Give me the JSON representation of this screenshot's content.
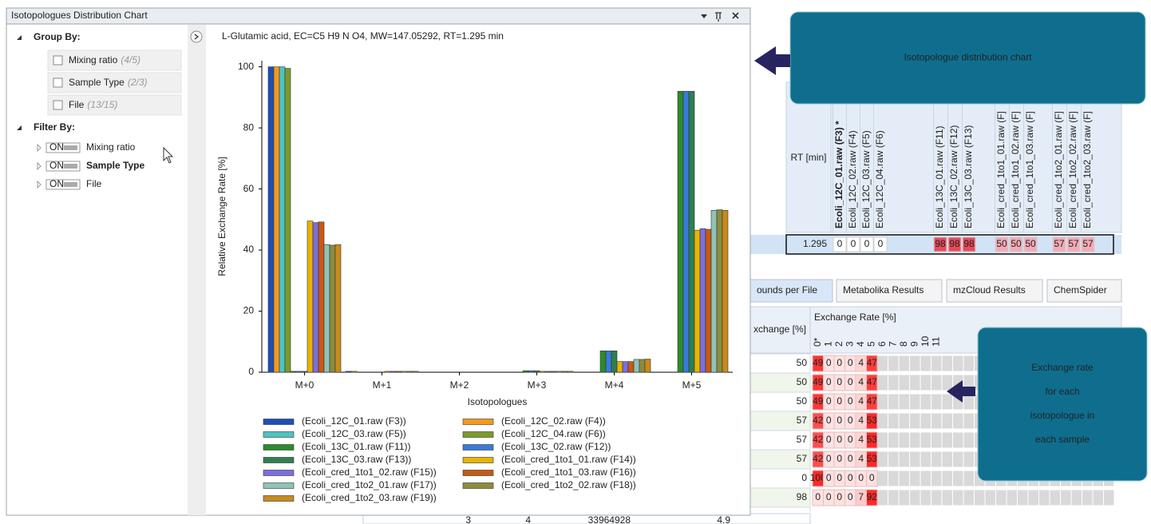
{
  "window_title": "Isotopologues Distribution Chart",
  "sidebar": {
    "group_by": {
      "label": "Group By:",
      "items": [
        {
          "label": "Mixing ratio",
          "count": "(4/5)"
        },
        {
          "label": "Sample Type",
          "count": "(2/3)"
        },
        {
          "label": "File",
          "count": "(13/15)"
        }
      ]
    },
    "filter_by": {
      "label": "Filter By:",
      "items": [
        {
          "toggle": "ON",
          "label": "Mixing ratio"
        },
        {
          "toggle": "ON",
          "label": "Sample Type"
        },
        {
          "toggle": "ON",
          "label": "File"
        }
      ]
    }
  },
  "chart_data": {
    "type": "bar",
    "title": "L-Glutamic acid, EC=C5 H9 N O4, MW=147.05292, RT=1.295 min",
    "y_label": "Relative Exchange Rate [%]",
    "x_label": "Isotopologues",
    "categories": [
      "M+0",
      "M+1",
      "M+2",
      "M+3",
      "M+4",
      "M+5"
    ],
    "ylim": [
      0,
      102
    ],
    "yticks": [
      0,
      20,
      40,
      60,
      80,
      100
    ],
    "grid": false,
    "series": [
      {
        "name": "(Ecoli_12C_01.raw (F3))",
        "color": "#1f4fb4",
        "values": [
          100,
          0.3,
          0,
          0,
          0,
          0
        ]
      },
      {
        "name": "(Ecoli_12C_02.raw (F4))",
        "color": "#f39a1e",
        "values": [
          100,
          0.3,
          0,
          0,
          0,
          0
        ]
      },
      {
        "name": "(Ecoli_12C_03.raw (F5))",
        "color": "#4cc4c4",
        "values": [
          100,
          0,
          0,
          0,
          0,
          0
        ]
      },
      {
        "name": "(Ecoli_12C_04.raw (F6))",
        "color": "#7c9a2c",
        "values": [
          99.5,
          0,
          0,
          0,
          0,
          0
        ]
      },
      {
        "name": "(Ecoli_13C_01.raw (F11))",
        "color": "#2b8c2b",
        "values": [
          0.3,
          0,
          0,
          0.5,
          7,
          92
        ]
      },
      {
        "name": "(Ecoli_13C_02.raw (F12))",
        "color": "#3a7ad8",
        "values": [
          0.3,
          0,
          0,
          0.5,
          7,
          92
        ]
      },
      {
        "name": "(Ecoli_13C_03.raw (F13))",
        "color": "#2e7f52",
        "values": [
          0.3,
          0,
          0,
          0.5,
          7,
          92
        ]
      },
      {
        "name": "(Ecoli_cred_1to1_01.raw (F14))",
        "color": "#e8b400",
        "values": [
          49.5,
          0.3,
          0,
          0.3,
          3.5,
          46.5
        ]
      },
      {
        "name": "(Ecoli_cred_1to1_02.raw (F15))",
        "color": "#7b6fe0",
        "values": [
          49,
          0.3,
          0,
          0.3,
          3.5,
          47
        ]
      },
      {
        "name": "(Ecoli_cred_1to1_03.raw (F16))",
        "color": "#c85a12",
        "values": [
          49.2,
          0.3,
          0,
          0.3,
          3.5,
          46.8
        ]
      },
      {
        "name": "(Ecoli_cred_1to2_01.raw (F17))",
        "color": "#90c2b8",
        "values": [
          41.8,
          0.3,
          0,
          0.3,
          4.2,
          53
        ]
      },
      {
        "name": "(Ecoli_cred_1to2_02.raw (F18))",
        "color": "#8c8c3c",
        "values": [
          41.6,
          0.3,
          0,
          0.3,
          4.2,
          53.2
        ]
      },
      {
        "name": "(Ecoli_cred_1to2_03.raw (F19))",
        "color": "#c88a1c",
        "values": [
          41.8,
          0.3,
          0,
          0.3,
          4.3,
          53
        ]
      }
    ]
  },
  "results_table": {
    "rt_header": "RT [min]",
    "columns": [
      "Ecoli_12C_01.raw (F3) *",
      "Ecoli_12C_02.raw (F4)",
      "Ecoli_12C_03.raw (F5)",
      "Ecoli_12C_04.raw (F6)",
      "Ecoli_13C_01.raw (F11)",
      "Ecoli_13C_02.raw (F12)",
      "Ecoli_13C_03.raw (F13)",
      "Ecoli_cred_1to1_01.raw (F]",
      "Ecoli_cred_1to1_02.raw (F]",
      "Ecoli_cred_1to1_03.raw (F]",
      "Ecoli_cred_1to2_01.raw (F]",
      "Ecoli_cred_1to2_02.raw (F]",
      "Ecoli_cred_1to2_03.raw (F]"
    ],
    "row": {
      "rt": 1.295,
      "values": [
        0,
        0,
        0,
        0,
        98,
        98,
        98,
        50,
        50,
        50,
        57,
        57,
        57
      ]
    }
  },
  "tabs": [
    "ounds per File",
    "Metabolika Results",
    "mzCloud Results",
    "ChemSpider"
  ],
  "exchange_table": {
    "exchange_header": "xchange [%]",
    "rate_header": "Exchange Rate [%]",
    "rate_columns": [
      "0*",
      "1",
      "2",
      "3",
      "4",
      "5",
      "6",
      "7",
      "8",
      "9",
      "10",
      "11"
    ],
    "rows": [
      {
        "exchange": 50,
        "rates": [
          49,
          0,
          0,
          0,
          4,
          47
        ]
      },
      {
        "exchange": 50,
        "rates": [
          49,
          0,
          0,
          0,
          4,
          47
        ]
      },
      {
        "exchange": 50,
        "rates": [
          49,
          0,
          0,
          0,
          4,
          47
        ]
      },
      {
        "exchange": 57,
        "rates": [
          42,
          0,
          0,
          0,
          4,
          53
        ]
      },
      {
        "exchange": 57,
        "rates": [
          42,
          0,
          0,
          0,
          4,
          53
        ]
      },
      {
        "exchange": 57,
        "rates": [
          42,
          0,
          0,
          0,
          4,
          53
        ]
      },
      {
        "exchange": 0,
        "rates": [
          100,
          0,
          0,
          0,
          0,
          0
        ]
      },
      {
        "exchange": 98,
        "rates": [
          0,
          0,
          0,
          0,
          7,
          92
        ]
      }
    ],
    "partial_row": [
      "3",
      "4",
      "33964928",
      "4.9"
    ]
  },
  "callouts": [
    [
      "Isotopologue distribution chart"
    ],
    [
      "Exchange rate",
      "for each",
      "isotopologue in",
      "each sample"
    ]
  ]
}
